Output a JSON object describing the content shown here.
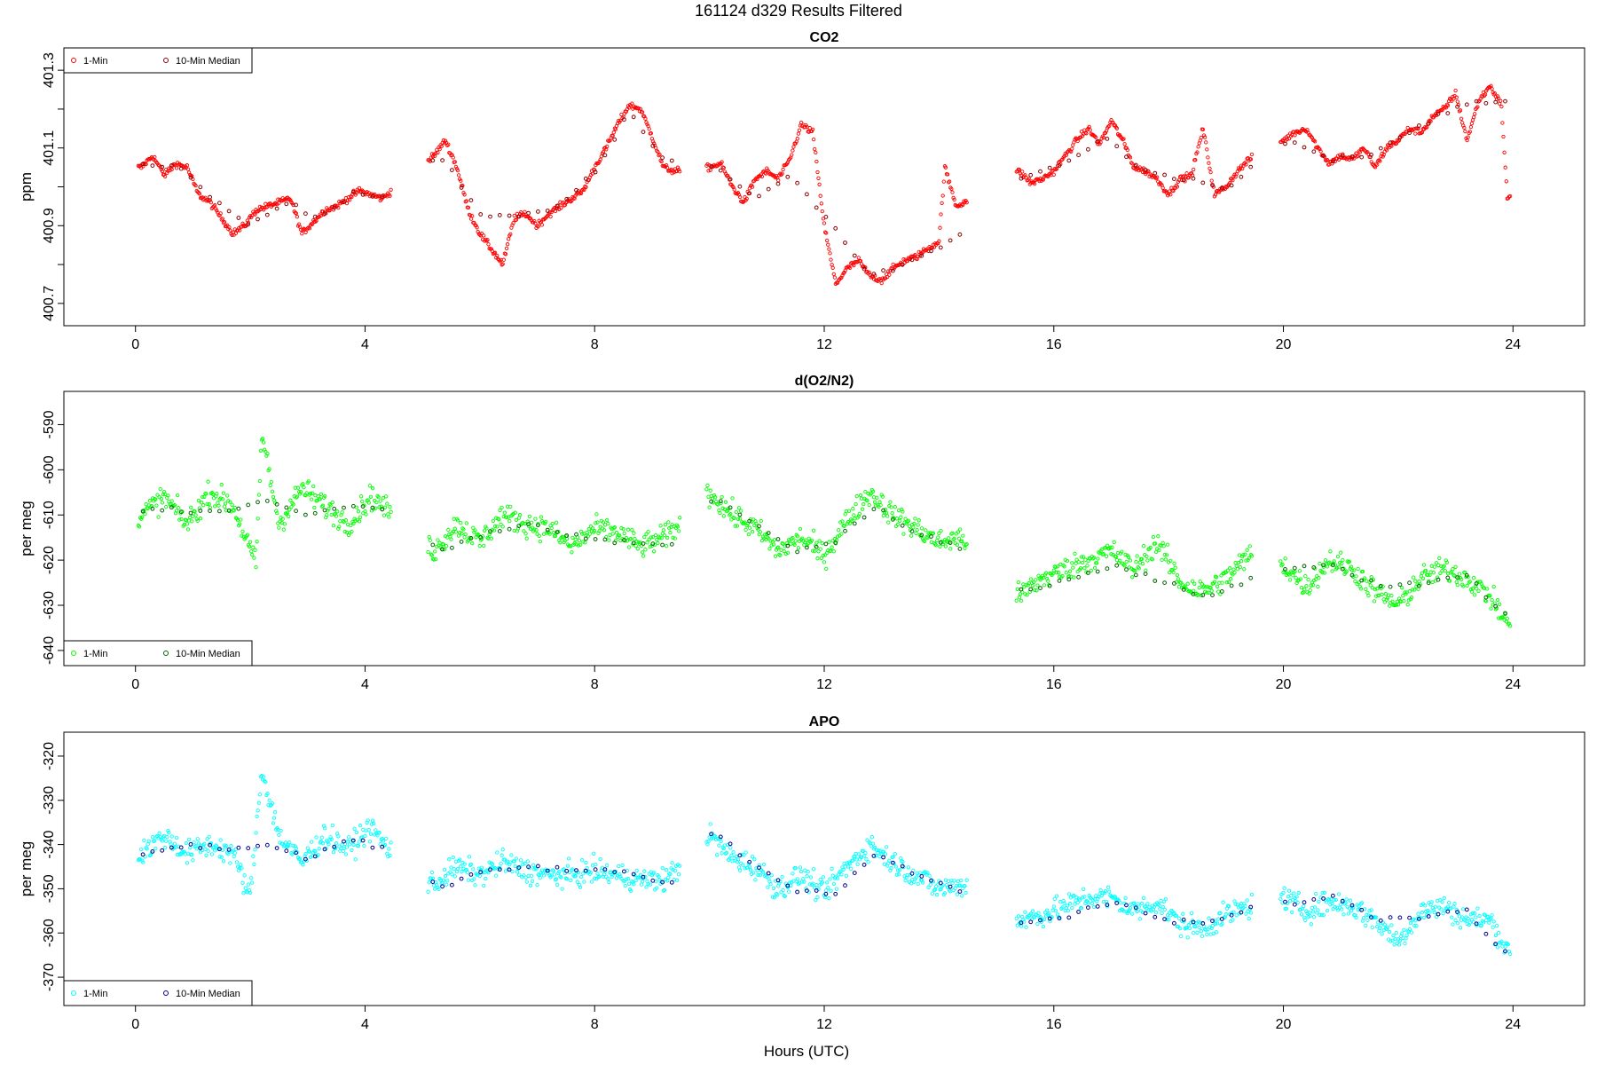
{
  "figure": {
    "title": "161124   d329   Results Filtered",
    "xlabel": "Hours (UTC)"
  },
  "chart_data": [
    {
      "type": "scatter",
      "title": "CO2",
      "xlabel": "",
      "ylabel": "ppm",
      "xlim": [
        -1,
        25
      ],
      "ylim": [
        400.67,
        401.33
      ],
      "xticks": [
        "0",
        "4",
        "8",
        "12",
        "16",
        "20",
        "24"
      ],
      "yticks": [
        "400.7",
        "400.9",
        "401.1",
        "401.3"
      ],
      "ytick_values": [
        400.7,
        400.9,
        401.1,
        401.3
      ],
      "minor_ytick_values": [
        400.8,
        401.0,
        401.2
      ],
      "legend": {
        "position": "top-left",
        "entries": [
          "1-Min",
          "10-Min Median"
        ]
      },
      "colors": {
        "one_min": "#ff0000",
        "median": "#8b0000"
      },
      "segments": [
        [
          0.05,
          4.45
        ],
        [
          5.1,
          9.5
        ],
        [
          9.95,
          14.5
        ],
        [
          15.35,
          19.45
        ],
        [
          19.95,
          23.95
        ]
      ],
      "series": [
        {
          "name": "1-Min",
          "x": [
            0.1,
            0.3,
            0.5,
            0.7,
            0.9,
            1.1,
            1.3,
            1.5,
            1.7,
            1.9,
            2.1,
            2.3,
            2.5,
            2.7,
            2.9,
            3.1,
            3.3,
            3.5,
            3.7,
            3.9,
            4.1,
            4.3,
            5.2,
            5.4,
            5.6,
            5.8,
            6.0,
            6.2,
            6.4,
            6.6,
            6.8,
            7.0,
            7.2,
            7.4,
            7.6,
            7.8,
            8.0,
            8.2,
            8.4,
            8.6,
            8.8,
            9.0,
            9.2,
            9.4,
            10.0,
            10.2,
            10.4,
            10.6,
            10.8,
            11.0,
            11.2,
            11.4,
            11.6,
            11.8,
            12.0,
            12.2,
            12.4,
            12.6,
            12.8,
            13.0,
            13.2,
            13.4,
            13.6,
            13.8,
            14.0,
            14.1,
            14.3,
            15.4,
            15.6,
            15.8,
            16.0,
            16.2,
            16.4,
            16.6,
            16.8,
            17.0,
            17.2,
            17.4,
            17.6,
            17.8,
            18.0,
            18.2,
            18.4,
            18.6,
            18.8,
            19.0,
            19.2,
            19.4,
            20.0,
            20.2,
            20.4,
            20.6,
            20.8,
            21.0,
            21.2,
            21.4,
            21.6,
            21.8,
            22.0,
            22.2,
            22.4,
            22.6,
            22.8,
            23.0,
            23.2,
            23.4,
            23.6,
            23.8,
            23.9
          ],
          "y": [
            401.05,
            401.08,
            401.03,
            401.06,
            401.05,
            400.98,
            400.96,
            400.92,
            400.88,
            400.9,
            400.94,
            400.95,
            400.96,
            400.97,
            400.88,
            400.91,
            400.94,
            400.95,
            400.97,
            400.99,
            400.98,
            400.97,
            401.08,
            401.12,
            401.05,
            400.94,
            400.88,
            400.84,
            400.8,
            400.92,
            400.93,
            400.9,
            400.93,
            400.95,
            400.97,
            400.99,
            401.05,
            401.1,
            401.16,
            401.21,
            401.2,
            401.13,
            401.05,
            401.04,
            401.05,
            401.06,
            401.0,
            400.96,
            401.02,
            401.04,
            401.02,
            401.07,
            401.16,
            401.14,
            400.9,
            400.75,
            400.79,
            400.81,
            400.77,
            400.76,
            400.79,
            400.81,
            400.82,
            400.84,
            400.86,
            401.05,
            400.95,
            401.04,
            401.01,
            401.02,
            401.04,
            401.08,
            401.12,
            401.15,
            401.11,
            401.17,
            401.12,
            401.05,
            401.04,
            401.02,
            400.98,
            401.02,
            401.03,
            401.15,
            400.98,
            401.0,
            401.04,
            401.07,
            401.12,
            401.14,
            401.15,
            401.1,
            401.06,
            401.08,
            401.07,
            401.1,
            401.05,
            401.1,
            401.12,
            401.15,
            401.14,
            401.18,
            401.2,
            401.24,
            401.12,
            401.22,
            401.26,
            401.21,
            400.97
          ]
        },
        {
          "name": "10-Min Median",
          "x": [
            0.2,
            0.8,
            1.4,
            2.0,
            2.6,
            3.2,
            3.8,
            4.4,
            5.3,
            6.0,
            6.8,
            7.4,
            8.0,
            8.6,
            9.2,
            10.1,
            10.8,
            11.4,
            12.1,
            12.8,
            13.4,
            14.2,
            15.5,
            16.2,
            16.9,
            17.6,
            18.3,
            19.0,
            20.1,
            20.8,
            21.5,
            22.2,
            22.9,
            23.5
          ],
          "y": [
            401.06,
            401.05,
            400.96,
            400.9,
            400.96,
            400.92,
            400.98,
            400.97,
            401.08,
            400.93,
            400.93,
            400.95,
            401.04,
            401.19,
            401.07,
            401.05,
            400.97,
            401.03,
            400.91,
            400.77,
            400.8,
            400.86,
            401.03,
            401.06,
            401.13,
            401.04,
            401.02,
            401.0,
            401.12,
            401.07,
            401.08,
            401.14,
            401.2,
            401.22
          ]
        }
      ]
    },
    {
      "type": "scatter",
      "title": "d(O2/N2)",
      "xlabel": "",
      "ylabel": "per meg",
      "xlim": [
        -1,
        25
      ],
      "ylim": [
        -641,
        -585
      ],
      "xticks": [
        "0",
        "4",
        "8",
        "12",
        "16",
        "20",
        "24"
      ],
      "yticks": [
        "-590",
        "-600",
        "-610",
        "-620",
        "-630",
        "-640"
      ],
      "ytick_values": [
        -590,
        -600,
        -610,
        -620,
        -630,
        -640
      ],
      "minor_ytick_values": [],
      "legend": {
        "position": "bottom-left",
        "entries": [
          "1-Min",
          "10-Min Median"
        ]
      },
      "colors": {
        "one_min": "#00ff00",
        "median": "#006400"
      },
      "segments": [
        [
          0.05,
          4.45
        ],
        [
          5.1,
          9.5
        ],
        [
          9.95,
          14.5
        ],
        [
          15.35,
          19.45
        ],
        [
          19.95,
          23.95
        ]
      ],
      "series": [
        {
          "name": "1-Min",
          "x": [
            0.1,
            0.5,
            0.9,
            1.3,
            1.7,
            2.1,
            2.2,
            2.5,
            2.9,
            3.3,
            3.7,
            4.1,
            4.4,
            5.2,
            5.6,
            6.0,
            6.4,
            6.8,
            7.2,
            7.6,
            8.0,
            8.4,
            8.8,
            9.2,
            9.4,
            10.0,
            10.4,
            10.8,
            11.2,
            11.6,
            12.0,
            12.4,
            12.8,
            13.2,
            13.6,
            14.0,
            14.4,
            15.4,
            15.8,
            16.2,
            16.6,
            17.0,
            17.4,
            17.8,
            18.2,
            18.6,
            19.0,
            19.4,
            20.0,
            20.4,
            20.8,
            21.2,
            21.6,
            22.0,
            22.4,
            22.8,
            23.2,
            23.6,
            23.9
          ],
          "y": [
            -610,
            -606,
            -612,
            -605,
            -608,
            -621,
            -592,
            -612,
            -604,
            -608,
            -612,
            -606,
            -609,
            -618,
            -612,
            -616,
            -610,
            -612,
            -613,
            -617,
            -613,
            -614,
            -617,
            -615,
            -613,
            -605,
            -610,
            -613,
            -618,
            -615,
            -619,
            -611,
            -605,
            -610,
            -613,
            -616,
            -615,
            -628,
            -624,
            -622,
            -620,
            -618,
            -622,
            -616,
            -625,
            -627,
            -624,
            -619,
            -621,
            -626,
            -620,
            -622,
            -627,
            -630,
            -624,
            -622,
            -624,
            -628,
            -634
          ]
        },
        {
          "name": "10-Min Median",
          "x": [
            0.2,
            0.9,
            1.6,
            2.3,
            3.0,
            3.7,
            4.4,
            5.3,
            6.1,
            6.9,
            7.7,
            8.5,
            9.3,
            10.1,
            10.8,
            11.5,
            12.2,
            12.9,
            13.6,
            14.3,
            15.5,
            16.3,
            17.1,
            17.9,
            18.7,
            19.3,
            20.1,
            20.9,
            21.7,
            22.5,
            23.2,
            23.8
          ],
          "y": [
            -609,
            -609,
            -609,
            -607,
            -610,
            -608,
            -609,
            -618,
            -614,
            -612,
            -615,
            -616,
            -617,
            -606,
            -612,
            -618,
            -616,
            -608,
            -614,
            -617,
            -627,
            -624,
            -621,
            -625,
            -628,
            -625,
            -622,
            -621,
            -626,
            -625,
            -623,
            -632
          ]
        }
      ]
    },
    {
      "type": "scatter",
      "title": "APO",
      "xlabel": "Hours (UTC)",
      "ylabel": "per meg",
      "xlim": [
        -1,
        25
      ],
      "ylim": [
        -374,
        -317
      ],
      "xticks": [
        "0",
        "4",
        "8",
        "12",
        "16",
        "20",
        "24"
      ],
      "yticks": [
        "-320",
        "-330",
        "-340",
        "-350",
        "-360",
        "-370"
      ],
      "ytick_values": [
        -320,
        -330,
        -340,
        -350,
        -360,
        -370
      ],
      "minor_ytick_values": [],
      "legend": {
        "position": "bottom-left",
        "entries": [
          "1-Min",
          "10-Min Median"
        ]
      },
      "colors": {
        "one_min": "#00ffff",
        "median": "#00008b"
      },
      "segments": [
        [
          0.05,
          4.45
        ],
        [
          5.1,
          9.5
        ],
        [
          9.95,
          14.5
        ],
        [
          15.35,
          19.45
        ],
        [
          19.95,
          23.95
        ]
      ],
      "series": [
        {
          "name": "1-Min",
          "x": [
            0.1,
            0.5,
            0.9,
            1.3,
            1.7,
            2.0,
            2.2,
            2.5,
            2.9,
            3.3,
            3.7,
            4.1,
            4.4,
            5.2,
            5.6,
            6.0,
            6.4,
            6.8,
            7.2,
            7.6,
            8.0,
            8.4,
            8.8,
            9.2,
            9.4,
            10.0,
            10.4,
            10.8,
            11.2,
            11.6,
            12.0,
            12.4,
            12.8,
            13.2,
            13.6,
            14.0,
            14.4,
            15.4,
            15.8,
            16.2,
            16.6,
            17.0,
            17.4,
            17.8,
            18.2,
            18.6,
            19.0,
            19.4,
            20.0,
            20.4,
            20.8,
            21.2,
            21.6,
            22.0,
            22.4,
            22.8,
            23.2,
            23.6,
            23.9
          ],
          "y": [
            -342,
            -338,
            -342,
            -340,
            -342,
            -352,
            -323,
            -338,
            -344,
            -338,
            -341,
            -336,
            -341,
            -349,
            -345,
            -347,
            -344,
            -346,
            -347,
            -347,
            -346,
            -347,
            -348,
            -348,
            -346,
            -338,
            -343,
            -345,
            -350,
            -347,
            -351,
            -345,
            -340,
            -344,
            -347,
            -350,
            -349,
            -357,
            -356,
            -354,
            -352,
            -352,
            -355,
            -353,
            -358,
            -359,
            -356,
            -354,
            -352,
            -355,
            -353,
            -354,
            -357,
            -362,
            -355,
            -354,
            -357,
            -357,
            -364
          ]
        },
        {
          "name": "10-Min Median",
          "x": [
            0.2,
            0.9,
            1.6,
            2.3,
            3.0,
            3.7,
            4.4,
            5.3,
            6.1,
            6.9,
            7.7,
            8.5,
            9.3,
            10.1,
            10.8,
            11.5,
            12.2,
            12.9,
            13.6,
            14.3,
            15.5,
            16.3,
            17.1,
            17.9,
            18.7,
            19.3,
            20.1,
            20.9,
            21.7,
            22.5,
            23.2,
            23.8
          ],
          "y": [
            -342,
            -340,
            -341,
            -340,
            -343,
            -339,
            -341,
            -350,
            -346,
            -345,
            -346,
            -346,
            -349,
            -337,
            -345,
            -350,
            -351,
            -342,
            -347,
            -350,
            -358,
            -356,
            -353,
            -357,
            -358,
            -355,
            -353,
            -352,
            -357,
            -356,
            -355,
            -364
          ]
        }
      ]
    }
  ]
}
